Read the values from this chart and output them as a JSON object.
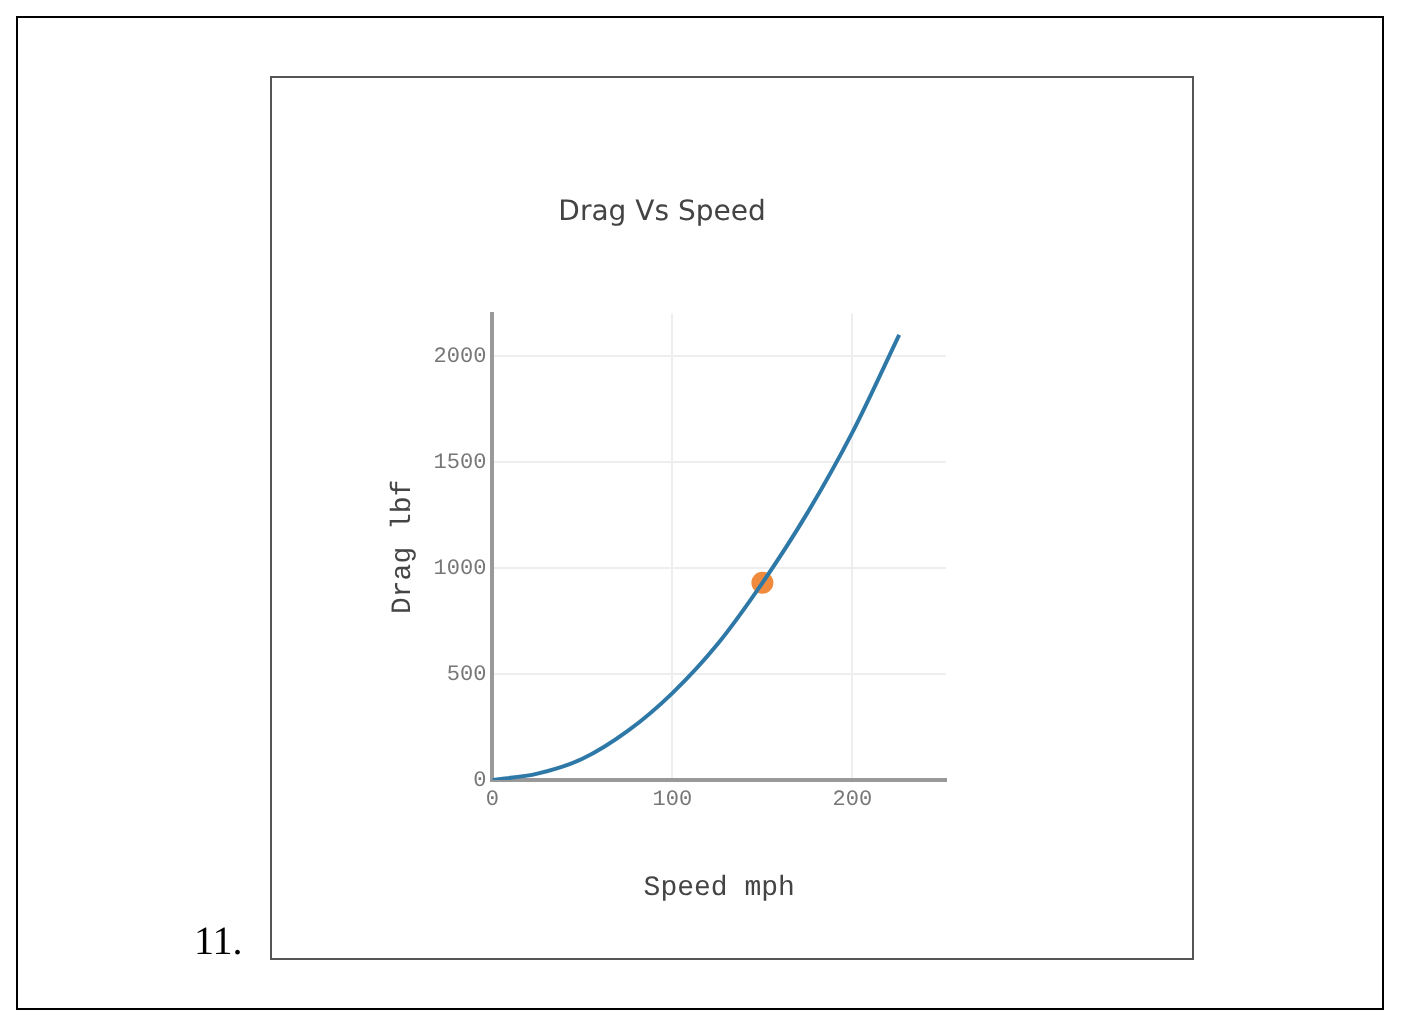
{
  "chart_data": {
    "type": "line",
    "title": "Drag Vs Speed",
    "xlabel": "Speed mph",
    "ylabel": "Drag lbf",
    "annotations": [
      "11."
    ],
    "series": [
      {
        "type": "line",
        "color": "#2e78a8",
        "marker": "none",
        "x": [
          0,
          25,
          50,
          75,
          100,
          125,
          150,
          175,
          200,
          226
        ],
        "values": [
          0,
          30,
          100,
          230,
          410,
          640,
          930,
          1260,
          1640,
          2100
        ]
      },
      {
        "type": "scatter",
        "color": "#f08a3c",
        "marker": "circle",
        "x": [
          150
        ],
        "values": [
          930
        ]
      }
    ],
    "xlim": [
      0,
      252
    ],
    "xticks": [
      0,
      100,
      200
    ],
    "ylim": [
      0,
      2200
    ],
    "yticks": [
      0,
      500,
      1000,
      1500,
      2000
    ],
    "grid": true
  }
}
